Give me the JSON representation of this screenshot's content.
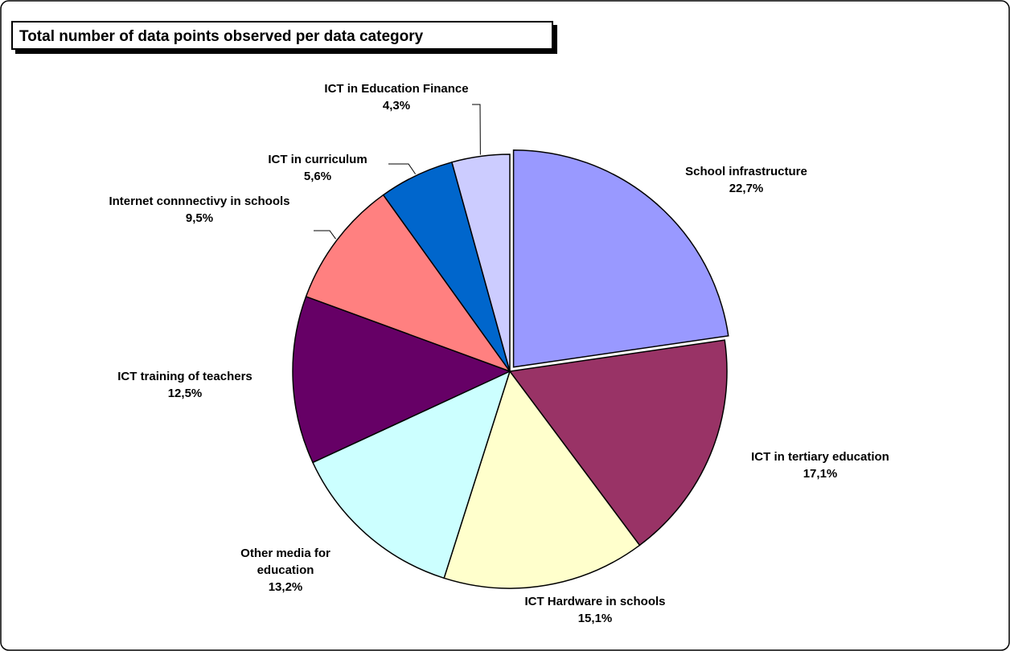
{
  "chart_data": {
    "type": "pie",
    "title": "Total number of data points observed per data category",
    "categories": [
      "School infrastructure",
      "ICT in tertiary education",
      "ICT Hardware in schools",
      "Other media for education",
      "ICT training of teachers",
      "Internet connnectivy in schools",
      "ICT in curriculum",
      "ICT in Education Finance"
    ],
    "values": [
      22.7,
      17.1,
      15.1,
      13.2,
      12.5,
      9.5,
      5.6,
      4.3
    ],
    "value_labels": [
      "22,7%",
      "17,1%",
      "15,1%",
      "13,2%",
      "12,5%",
      "9,5%",
      "5,6%",
      "4,3%"
    ],
    "colors": [
      "#9999ff",
      "#993366",
      "#ffffcc",
      "#ccffff",
      "#660066",
      "#ff8080",
      "#0066cc",
      "#ccccff"
    ]
  }
}
